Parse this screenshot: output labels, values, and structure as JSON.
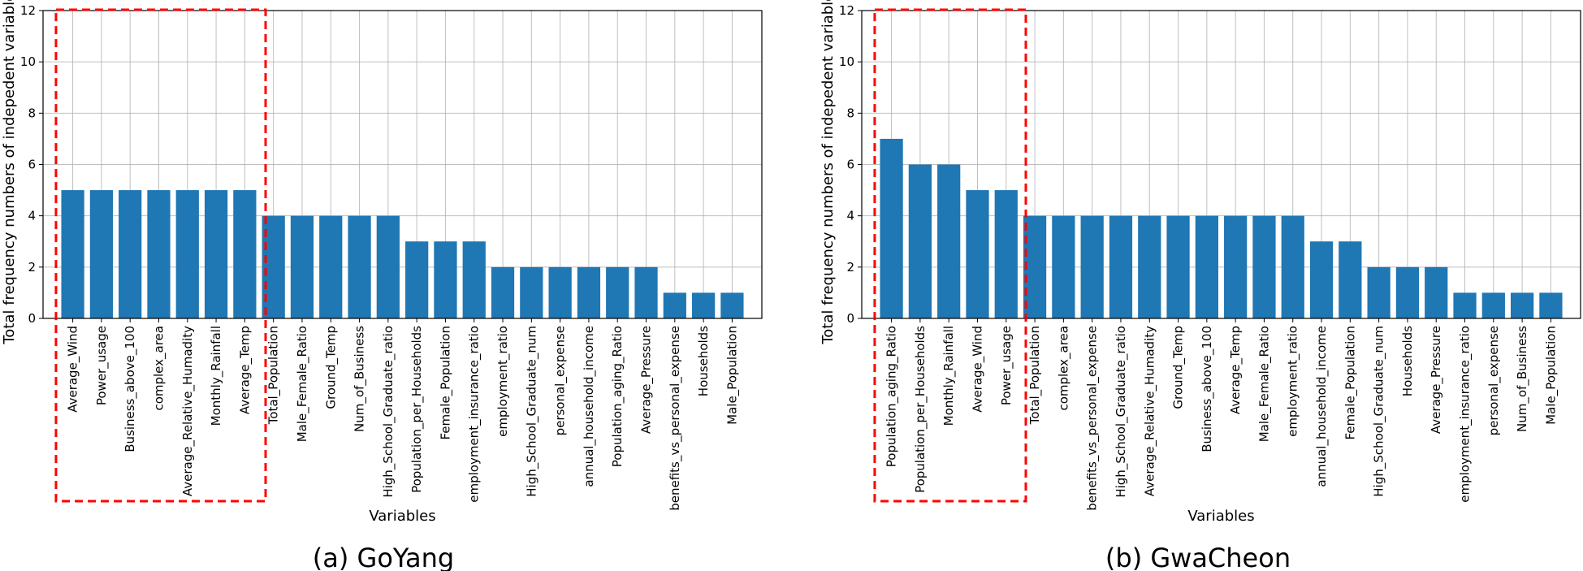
{
  "chart_data": [
    {
      "type": "bar",
      "caption": "(a) GoYang",
      "xlabel": "Variables",
      "ylabel": "Total frequency numbers of indepedent variables",
      "ylim": [
        0,
        12
      ],
      "yticks": [
        0,
        2,
        4,
        6,
        8,
        10,
        12
      ],
      "grid": true,
      "bar_color": "#1f77b4",
      "highlight_color": "#ff0000",
      "highlight_count": 7,
      "categories": [
        "Average_Wind",
        "Power_usage",
        "Business_above_100",
        "complex_area",
        "Average_Relative_Humadity",
        "Monthly_Rainfall",
        "Average_Temp",
        "Total_Population",
        "Male_Female_Ratio",
        "Ground_Temp",
        "Num_of_Business",
        "High_School_Graduate_ratio",
        "Population_per_Households",
        "Female_Population",
        "employment_insurance_ratio",
        "employment_ratio",
        "High_School_Graduate_num",
        "personal_expense",
        "annual_household_income",
        "Population_aging_Ratio",
        "Average_Pressure",
        "benefits_vs_personal_expense",
        "Households",
        "Male_Population"
      ],
      "values": [
        5,
        5,
        5,
        5,
        5,
        5,
        5,
        4,
        4,
        4,
        4,
        4,
        3,
        3,
        3,
        2,
        2,
        2,
        2,
        2,
        2,
        1,
        1,
        1
      ]
    },
    {
      "type": "bar",
      "caption": "(b) GwaCheon",
      "xlabel": "Variables",
      "ylabel": "Total frequency numbers of indepedent variables",
      "ylim": [
        0,
        12
      ],
      "yticks": [
        0,
        2,
        4,
        6,
        8,
        10,
        12
      ],
      "grid": true,
      "bar_color": "#1f77b4",
      "highlight_color": "#ff0000",
      "highlight_count": 5,
      "categories": [
        "Population_aging_Ratio",
        "Population_per_Households",
        "Monthly_Rainfall",
        "Average_Wind",
        "Power_usage",
        "Total_Population",
        "complex_area",
        "benefits_vs_personal_expense",
        "High_School_Graduate_ratio",
        "Average_Relative_Humadity",
        "Ground_Temp",
        "Business_above_100",
        "Average_Temp",
        "Male_Female_Ratio",
        "employment_ratio",
        "annual_household_income",
        "Female_Population",
        "High_School_Graduate_num",
        "Households",
        "Average_Pressure",
        "employment_insurance_ratio",
        "personal_expense",
        "Num_of_Business",
        "Male_Population"
      ],
      "values": [
        7,
        6,
        6,
        5,
        5,
        4,
        4,
        4,
        4,
        4,
        4,
        4,
        4,
        4,
        4,
        3,
        3,
        2,
        2,
        2,
        1,
        1,
        1,
        1
      ]
    }
  ]
}
